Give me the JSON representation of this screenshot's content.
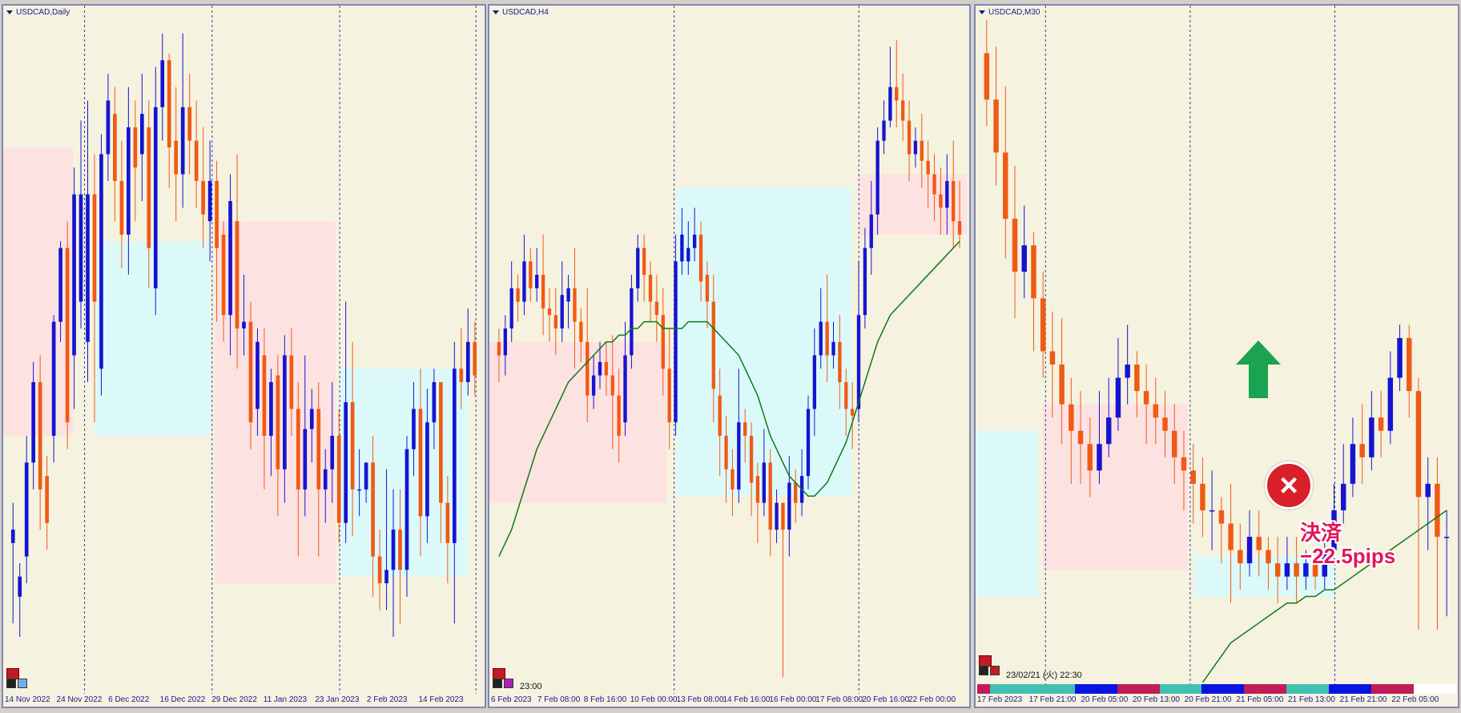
{
  "colors": {
    "bg": "#f5f2df",
    "bull": "#1414d2",
    "bear": "#f05a14",
    "zone_red": "#fde2e2",
    "zone_cyan": "#dcf9fa",
    "ma": "#0f7a1a",
    "grid": "#3040a0"
  },
  "chart_data": [
    {
      "type": "candlestick",
      "title": "USDCAD,Daily",
      "time_labels": [
        "14 Nov 2022",
        "24 Nov 2022",
        "6 Dec 2022",
        "16 Dec 2022",
        "29 Dec 2022",
        "11 Jan 2023",
        "23 Jan 2023",
        "2 Feb 2023",
        "14 Feb 2023"
      ],
      "ylim": [
        0,
        100
      ],
      "vlines": [
        0.169,
        0.434,
        0.699,
        0.982
      ],
      "zones": [
        {
          "x0": 0.0,
          "x1": 0.145,
          "y0": 81,
          "y1": 38,
          "color": "red"
        },
        {
          "x0": 0.19,
          "x1": 0.43,
          "y0": 67,
          "y1": 38,
          "color": "cyan"
        },
        {
          "x0": 0.44,
          "x1": 0.69,
          "y0": 70,
          "y1": 16,
          "color": "red"
        },
        {
          "x0": 0.7,
          "x1": 0.965,
          "y0": 48,
          "y1": 17,
          "color": "cyan"
        }
      ],
      "candles": [
        [
          22,
          24,
          10,
          28
        ],
        [
          14,
          17,
          8,
          19
        ],
        [
          20,
          34,
          16,
          38
        ],
        [
          34,
          46,
          30,
          49
        ],
        [
          46,
          30,
          24,
          50
        ],
        [
          32,
          25,
          21,
          35
        ],
        [
          38,
          55,
          34,
          56
        ],
        [
          55,
          66,
          52,
          67
        ],
        [
          66,
          40,
          36,
          70
        ],
        [
          50,
          74,
          42,
          78
        ],
        [
          58,
          74,
          54,
          85
        ],
        [
          52,
          74,
          46,
          88
        ],
        [
          74,
          58,
          40,
          80
        ],
        [
          48,
          80,
          44,
          83
        ],
        [
          80,
          88,
          76,
          92
        ],
        [
          86,
          76,
          70,
          90
        ],
        [
          76,
          68,
          63,
          82
        ],
        [
          68,
          84,
          62,
          90
        ],
        [
          84,
          78,
          70,
          88
        ],
        [
          80,
          86,
          73,
          92
        ],
        [
          84,
          66,
          60,
          88
        ],
        [
          60,
          87,
          56,
          93
        ],
        [
          87,
          94,
          82,
          98
        ],
        [
          94,
          81,
          75,
          95
        ],
        [
          82,
          77,
          70,
          90
        ],
        [
          77,
          87,
          72,
          98
        ],
        [
          87,
          82,
          77,
          92
        ],
        [
          82,
          76,
          72,
          88
        ],
        [
          76,
          71,
          66,
          84
        ],
        [
          70,
          76,
          64,
          82
        ],
        [
          76,
          66,
          55,
          79
        ],
        [
          68,
          56,
          52,
          70
        ],
        [
          56,
          73,
          50,
          77
        ],
        [
          70,
          54,
          48,
          80
        ],
        [
          54,
          55,
          50,
          62
        ],
        [
          55,
          40,
          36,
          58
        ],
        [
          42,
          52,
          38,
          54
        ],
        [
          50,
          38,
          30,
          54
        ],
        [
          38,
          46,
          32,
          48
        ],
        [
          47,
          33,
          26,
          50
        ],
        [
          33,
          50,
          28,
          53
        ],
        [
          50,
          42,
          38,
          54
        ],
        [
          42,
          30,
          20,
          46
        ],
        [
          30,
          39,
          26,
          50
        ],
        [
          39,
          42,
          34,
          45
        ],
        [
          42,
          30,
          20,
          46
        ],
        [
          30,
          33,
          25,
          36
        ],
        [
          33,
          38,
          28,
          46
        ],
        [
          38,
          25,
          22,
          42
        ],
        [
          25,
          43,
          22,
          58
        ],
        [
          43,
          30,
          23,
          52
        ],
        [
          30,
          30,
          26,
          36
        ],
        [
          30,
          34,
          28,
          34
        ],
        [
          34,
          20,
          14,
          38
        ],
        [
          20,
          16,
          12,
          24
        ],
        [
          16,
          18,
          12,
          33
        ],
        [
          18,
          24,
          8,
          30
        ],
        [
          24,
          18,
          10,
          30
        ],
        [
          18,
          36,
          14,
          38
        ],
        [
          36,
          42,
          32,
          46
        ],
        [
          42,
          26,
          20,
          48
        ],
        [
          26,
          40,
          22,
          45
        ],
        [
          40,
          46,
          36,
          48
        ],
        [
          46,
          28,
          22,
          46
        ],
        [
          28,
          22,
          16,
          32
        ],
        [
          22,
          48,
          10,
          52
        ],
        [
          48,
          46,
          42,
          54
        ],
        [
          46,
          52,
          44,
          57
        ],
        [
          52,
          47,
          44,
          55
        ]
      ]
    },
    {
      "type": "candlestick",
      "title": "USDCAD,H4",
      "time_labels": [
        "6 Feb 2023",
        "7 Feb 08:00",
        "8 Feb 16:00",
        "10 Feb 00:00",
        "13 Feb 08:00",
        "14 Feb 16:00",
        "16 Feb 00:00",
        "17 Feb 08:00",
        "20 Feb 16:00",
        "22 Feb 00:00"
      ],
      "bottom_time_label": "23:00",
      "ylim": [
        0,
        100
      ],
      "vlines": [
        0.385,
        0.77
      ],
      "zones": [
        {
          "x0": 0.0,
          "x1": 0.37,
          "y0": 52,
          "y1": 28,
          "color": "red"
        },
        {
          "x0": 0.39,
          "x1": 0.755,
          "y0": 75,
          "y1": 29,
          "color": "cyan"
        },
        {
          "x0": 0.77,
          "x1": 0.995,
          "y0": 77,
          "y1": 68,
          "color": "red"
        }
      ],
      "candles": [
        [
          52,
          50,
          46,
          54
        ],
        [
          50,
          54,
          47,
          56
        ],
        [
          54,
          60,
          52,
          64
        ],
        [
          60,
          58,
          55,
          62
        ],
        [
          58,
          64,
          56,
          68
        ],
        [
          64,
          60,
          58,
          66
        ],
        [
          60,
          62,
          58,
          66
        ],
        [
          62,
          57,
          53,
          68
        ],
        [
          57,
          56,
          52,
          60
        ],
        [
          56,
          54,
          50,
          60
        ],
        [
          54,
          59,
          52,
          64
        ],
        [
          58,
          60,
          54,
          62
        ],
        [
          60,
          55,
          48,
          66
        ],
        [
          55,
          52,
          49,
          57
        ],
        [
          52,
          44,
          40,
          60
        ],
        [
          44,
          47,
          42,
          50
        ],
        [
          47,
          49,
          45,
          52
        ],
        [
          49,
          47,
          44,
          52
        ],
        [
          47,
          44,
          36,
          53
        ],
        [
          44,
          38,
          34,
          48
        ],
        [
          40,
          50,
          38,
          55
        ],
        [
          50,
          60,
          48,
          62
        ],
        [
          60,
          66,
          58,
          68
        ],
        [
          66,
          62,
          58,
          68
        ],
        [
          62,
          58,
          55,
          64
        ],
        [
          58,
          56,
          52,
          62
        ],
        [
          56,
          48,
          44,
          60
        ],
        [
          48,
          40,
          36,
          54
        ],
        [
          40,
          64,
          38,
          68
        ],
        [
          64,
          68,
          62,
          72
        ],
        [
          64,
          66,
          62,
          70
        ],
        [
          66,
          68,
          64,
          72
        ],
        [
          68,
          61,
          58,
          70
        ],
        [
          62,
          58,
          54,
          64
        ],
        [
          58,
          45,
          40,
          62
        ],
        [
          44,
          38,
          32,
          48
        ],
        [
          38,
          33,
          28,
          41
        ],
        [
          33,
          30,
          26,
          36
        ],
        [
          30,
          40,
          28,
          48
        ],
        [
          40,
          38,
          34,
          42
        ],
        [
          38,
          31,
          26,
          40
        ],
        [
          32,
          28,
          22,
          34
        ],
        [
          28,
          34,
          26,
          39
        ],
        [
          34,
          24,
          20,
          36
        ],
        [
          24,
          28,
          22,
          30
        ],
        [
          28,
          24,
          2,
          28
        ],
        [
          24,
          31,
          20,
          35
        ],
        [
          31,
          28,
          25,
          33
        ],
        [
          28,
          32,
          26,
          36
        ],
        [
          32,
          42,
          30,
          44
        ],
        [
          42,
          50,
          38,
          54
        ],
        [
          50,
          55,
          48,
          60
        ],
        [
          55,
          50,
          46,
          62
        ],
        [
          50,
          52,
          48,
          55
        ],
        [
          52,
          46,
          42,
          56
        ],
        [
          46,
          42,
          38,
          48
        ],
        [
          42,
          41,
          36,
          46
        ],
        [
          42,
          56,
          40,
          64
        ],
        [
          56,
          66,
          54,
          69
        ],
        [
          66,
          71,
          62,
          76
        ],
        [
          71,
          82,
          68,
          84
        ],
        [
          82,
          85,
          80,
          88
        ],
        [
          85,
          90,
          84,
          96
        ],
        [
          90,
          88,
          84,
          97
        ],
        [
          88,
          85,
          82,
          92
        ],
        [
          85,
          80,
          76,
          88
        ],
        [
          80,
          82,
          78,
          84
        ],
        [
          82,
          79,
          75,
          86
        ],
        [
          79,
          77,
          72,
          82
        ],
        [
          77,
          74,
          70,
          80
        ],
        [
          74,
          72,
          68,
          78
        ],
        [
          72,
          76,
          68,
          80
        ],
        [
          76,
          70,
          66,
          82
        ],
        [
          70,
          68,
          66,
          76
        ]
      ],
      "ma": [
        20,
        22,
        24,
        27,
        30,
        33,
        36,
        38,
        40,
        42,
        44,
        46,
        47,
        48,
        49,
        50,
        51,
        52,
        52,
        53,
        53,
        54,
        54,
        55,
        55,
        55,
        54,
        54,
        54,
        54,
        55,
        55,
        55,
        55,
        54,
        53,
        52,
        51,
        50,
        48,
        46,
        44,
        41,
        38,
        36,
        34,
        32,
        31,
        30,
        29,
        29,
        30,
        31,
        33,
        35,
        37,
        40,
        43,
        46,
        49,
        52,
        54,
        56,
        57,
        58,
        59,
        60,
        61,
        62,
        63,
        64,
        65,
        66,
        67
      ]
    },
    {
      "type": "candlestick",
      "title": "USDCAD,M30",
      "time_labels": [
        "17 Feb 2023",
        "17 Feb 21:00",
        "20 Feb 05:00",
        "20 Feb 13:00",
        "20 Feb 21:00",
        "21 Feb 05:00",
        "21 Feb 13:00",
        "21 Feb 21:00",
        "22 Feb 05:00"
      ],
      "bottom_time_label": "23/02/21 (火) 22:30",
      "ylim": [
        0,
        100
      ],
      "vlines": [
        0.145,
        0.445,
        0.745
      ],
      "zones": [
        {
          "x0": 0.0,
          "x1": 0.13,
          "y0": 38,
          "y1": 13,
          "color": "cyan"
        },
        {
          "x0": 0.14,
          "x1": 0.44,
          "y0": 42,
          "y1": 17,
          "color": "red"
        },
        {
          "x0": 0.455,
          "x1": 0.745,
          "y0": 19,
          "y1": 13,
          "color": "cyan"
        }
      ],
      "candles": [
        [
          95,
          88,
          84,
          100
        ],
        [
          88,
          80,
          75,
          96
        ],
        [
          80,
          70,
          64,
          90
        ],
        [
          70,
          62,
          55,
          78
        ],
        [
          62,
          66,
          58,
          72
        ],
        [
          66,
          58,
          50,
          68
        ],
        [
          58,
          50,
          46,
          62
        ],
        [
          50,
          48,
          40,
          56
        ],
        [
          48,
          42,
          36,
          55
        ],
        [
          42,
          38,
          30,
          46
        ],
        [
          38,
          36,
          30,
          44
        ],
        [
          36,
          32,
          28,
          40
        ],
        [
          32,
          36,
          30,
          44
        ],
        [
          36,
          40,
          34,
          46
        ],
        [
          40,
          46,
          38,
          52
        ],
        [
          46,
          48,
          42,
          54
        ],
        [
          48,
          44,
          40,
          50
        ],
        [
          44,
          42,
          36,
          48
        ],
        [
          42,
          40,
          36,
          46
        ],
        [
          40,
          38,
          34,
          44
        ],
        [
          38,
          34,
          30,
          42
        ],
        [
          34,
          32,
          26,
          38
        ],
        [
          32,
          30,
          24,
          36
        ],
        [
          30,
          26,
          22,
          34
        ],
        [
          26,
          26,
          20,
          32
        ],
        [
          26,
          24,
          18,
          28
        ],
        [
          24,
          20,
          12,
          30
        ],
        [
          20,
          18,
          14,
          24
        ],
        [
          18,
          22,
          16,
          26
        ],
        [
          22,
          20,
          16,
          26
        ],
        [
          20,
          18,
          14,
          22
        ],
        [
          18,
          16,
          12,
          22
        ],
        [
          16,
          18,
          14,
          22
        ],
        [
          18,
          16,
          12,
          22
        ],
        [
          16,
          18,
          14,
          20
        ],
        [
          18,
          16,
          14,
          20
        ],
        [
          16,
          20,
          14,
          22
        ],
        [
          20,
          26,
          18,
          30
        ],
        [
          26,
          30,
          24,
          36
        ],
        [
          30,
          36,
          28,
          40
        ],
        [
          36,
          34,
          30,
          42
        ],
        [
          34,
          40,
          32,
          44
        ],
        [
          40,
          38,
          34,
          44
        ],
        [
          38,
          46,
          36,
          50
        ],
        [
          46,
          52,
          44,
          54
        ],
        [
          52,
          44,
          40,
          54
        ],
        [
          44,
          28,
          8,
          46
        ],
        [
          28,
          30,
          20,
          34
        ],
        [
          30,
          22,
          8,
          34
        ],
        [
          22,
          22,
          10,
          26
        ]
      ],
      "ma": [
        null,
        null,
        null,
        null,
        null,
        null,
        null,
        null,
        null,
        null,
        null,
        null,
        null,
        null,
        null,
        null,
        null,
        null,
        null,
        null,
        null,
        null,
        null,
        0,
        2,
        4,
        6,
        7,
        8,
        9,
        10,
        11,
        12,
        12,
        13,
        13,
        14,
        14,
        15,
        16,
        17,
        18,
        19,
        20,
        21,
        22,
        23,
        24,
        25,
        26
      ]
    }
  ],
  "status_strip": [
    "#c01c58",
    "#40c0b0",
    "#40c0b0",
    "#0a14e0",
    "#c01c58",
    "#40c0b0",
    "#0a14e0",
    "#c01c58",
    "#40c0b0",
    "#0a14e0",
    "#c01c58",
    "#ffffff"
  ],
  "annotations": {
    "x_mark": "×",
    "result_title": "決済",
    "result_value": "−22.5pips"
  }
}
